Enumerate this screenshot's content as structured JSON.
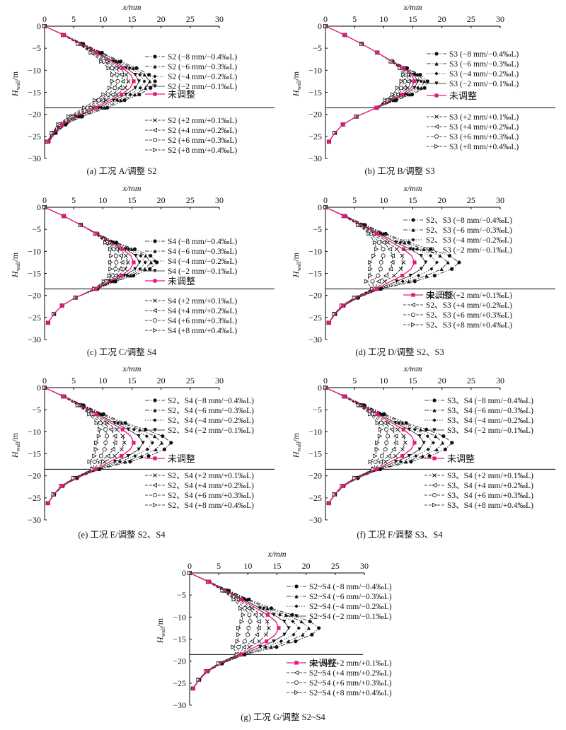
{
  "axes": {
    "xlabel": "x/mm",
    "ylabel": "H",
    "ylabel_sub": "wall",
    "ylabel_unit": "/m",
    "xticks": [
      0,
      5,
      10,
      15,
      20,
      25,
      30
    ],
    "yticks": [
      0,
      -5,
      -10,
      -15,
      -20,
      -25,
      -30
    ],
    "xlim": [
      0,
      30
    ],
    "ylim": [
      -30,
      0
    ],
    "hline_y": -18.5
  },
  "colors": {
    "unadjusted": "#e6197a",
    "series": "#111111"
  },
  "unadjusted_label": "未调整",
  "chart_data": [
    {
      "type": "line",
      "caption": "(a) 工况 A/调整 S2",
      "group": "S2",
      "max_shift": 0.4,
      "series": [
        {
          "name": "S2 (−8 mm/−0.4‰L)",
          "marker": "circle",
          "dash": "6,2,1.5,2",
          "delta": -8
        },
        {
          "name": "S2 (−6 mm/−0.3‰L)",
          "marker": "triangle",
          "dash": "6,2,1.5,2",
          "delta": -6
        },
        {
          "name": "S2 (−4 mm/−0.2‰L)",
          "marker": "diamond",
          "dash": "1.5,2",
          "delta": -4
        },
        {
          "name": "S2 (−2 mm/−0.1‰L)",
          "marker": "tri-down",
          "dash": "",
          "delta": -2
        },
        {
          "name": "S2 (+2 mm/+0.1‰L)",
          "marker": "x",
          "dash": "4,2",
          "delta": 2
        },
        {
          "name": "S2 (+4 mm/+0.2‰L)",
          "marker": "tri-left",
          "dash": "4,2",
          "delta": 4
        },
        {
          "name": "S2 (+6 mm/+0.3‰L)",
          "marker": "circle-open",
          "dash": "4,2",
          "delta": 6
        },
        {
          "name": "S2 (+8 mm/+0.4‰L)",
          "marker": "tri-right",
          "dash": "4,2",
          "delta": 8
        }
      ]
    },
    {
      "type": "line",
      "caption": "(b) 工况 B/调整 S3",
      "group": "S3",
      "max_shift": 0.28,
      "series": [
        {
          "name": "S3 (−8 mm/−0.4‰L)",
          "marker": "circle",
          "dash": "6,2,1.5,2",
          "delta": -8
        },
        {
          "name": "S3 (−6 mm/−0.3‰L)",
          "marker": "triangle",
          "dash": "6,2,1.5,2",
          "delta": -6
        },
        {
          "name": "S3 (−4 mm/−0.2‰L)",
          "marker": "diamond",
          "dash": "1.5,2",
          "delta": -4
        },
        {
          "name": "S3 (−2 mm/−0.1‰L)",
          "marker": "tri-down",
          "dash": "",
          "delta": -2
        },
        {
          "name": "S3 (+2 mm/+0.1‰L)",
          "marker": "x",
          "dash": "4,2",
          "delta": 2
        },
        {
          "name": "S3 (+4 mm/+0.2‰L)",
          "marker": "tri-left",
          "dash": "4,2",
          "delta": 4
        },
        {
          "name": "S3 (+6 mm/+0.3‰L)",
          "marker": "circle-open",
          "dash": "4,2",
          "delta": 6
        },
        {
          "name": "S3 (+8 mm/+0.4‰L)",
          "marker": "tri-right",
          "dash": "4,2",
          "delta": 8
        }
      ]
    },
    {
      "type": "line",
      "caption": "(c) 工况 C/调整 S4",
      "group": "S4",
      "max_shift": 0.26,
      "series": [
        {
          "name": "S4 (−8 mm/−0.4‰L)",
          "marker": "circle",
          "dash": "6,2,1.5,2",
          "delta": -8
        },
        {
          "name": "S4 (−6 mm/−0.3‰L)",
          "marker": "triangle",
          "dash": "6,2,1.5,2",
          "delta": -6
        },
        {
          "name": "S4 (−4 mm/−0.2‰L)",
          "marker": "diamond",
          "dash": "1.5,2",
          "delta": -4
        },
        {
          "name": "S4 (−2 mm/−0.1‰L)",
          "marker": "tri-down",
          "dash": "",
          "delta": -2
        },
        {
          "name": "S4 (+2 mm/+0.1‰L)",
          "marker": "x",
          "dash": "4,2",
          "delta": 2
        },
        {
          "name": "S4 (+4 mm/+0.2‰L)",
          "marker": "tri-left",
          "dash": "4,2",
          "delta": 4
        },
        {
          "name": "S4 (+6 mm/+0.3‰L)",
          "marker": "circle-open",
          "dash": "4,2",
          "delta": 6
        },
        {
          "name": "S4 (+8 mm/+0.4‰L)",
          "marker": "tri-right",
          "dash": "4,2",
          "delta": 8
        }
      ]
    },
    {
      "type": "line",
      "caption": "(d) 工况 D/调整 S2、S3",
      "group": "S2S3",
      "max_shift": 0.5,
      "series": [
        {
          "name": "S2、S3 (−8 mm/−0.4‰L)",
          "marker": "circle",
          "dash": "6,2,1.5,2",
          "delta": -8
        },
        {
          "name": "S2、S3 (−6 mm/−0.3‰L)",
          "marker": "triangle",
          "dash": "6,2,1.5,2",
          "delta": -6
        },
        {
          "name": "S2、S3 (−4 mm/−0.2‰L)",
          "marker": "diamond",
          "dash": "1.5,2",
          "delta": -4
        },
        {
          "name": "S2、S3 (−2 mm/−0.1‰L)",
          "marker": "tri-down",
          "dash": "",
          "delta": -2
        },
        {
          "name": "S2、S3 (+2 mm/+0.1‰L)",
          "marker": "x",
          "dash": "4,2",
          "delta": 2
        },
        {
          "name": "S2、S3 (+4 mm/+0.2‰L)",
          "marker": "tri-left",
          "dash": "4,2",
          "delta": 4
        },
        {
          "name": "S2、S3 (+6 mm/+0.3‰L)",
          "marker": "circle-open",
          "dash": "4,2",
          "delta": 6
        },
        {
          "name": "S2、S3 (+8 mm/+0.4‰L)",
          "marker": "tri-right",
          "dash": "4,2",
          "delta": 8
        }
      ]
    },
    {
      "type": "line",
      "caption": "(e) 工况 E/调整 S2、S4",
      "group": "S2S4",
      "max_shift": 0.42,
      "series": [
        {
          "name": "S2、S4 (−8 mm/−0.4‰L)",
          "marker": "circle",
          "dash": "6,2,1.5,2",
          "delta": -8
        },
        {
          "name": "S2、S4 (−6 mm/−0.3‰L)",
          "marker": "triangle",
          "dash": "6,2,1.5,2",
          "delta": -6
        },
        {
          "name": "S2、S4 (−4 mm/−0.2‰L)",
          "marker": "diamond",
          "dash": "1.5,2",
          "delta": -4
        },
        {
          "name": "S2、S4 (−2 mm/−0.1‰L)",
          "marker": "tri-down",
          "dash": "",
          "delta": -2
        },
        {
          "name": "S2、S4 (+2 mm/+0.1‰L)",
          "marker": "x",
          "dash": "4,2",
          "delta": 2
        },
        {
          "name": "S2、S4 (+4 mm/+0.2‰L)",
          "marker": "tri-left",
          "dash": "4,2",
          "delta": 4
        },
        {
          "name": "S2、S4 (+6 mm/+0.3‰L)",
          "marker": "circle-open",
          "dash": "4,2",
          "delta": 6
        },
        {
          "name": "S2、S4 (+8 mm/+0.4‰L)",
          "marker": "tri-right",
          "dash": "4,2",
          "delta": 8
        }
      ]
    },
    {
      "type": "line",
      "caption": "(f) 工况 F/调整 S3、S4",
      "group": "S3S4",
      "max_shift": 0.42,
      "series": [
        {
          "name": "S3、S4 (−8 mm/−0.4‰L)",
          "marker": "circle",
          "dash": "6,2,1.5,2",
          "delta": -8
        },
        {
          "name": "S3、S4 (−6 mm/−0.3‰L)",
          "marker": "triangle",
          "dash": "6,2,1.5,2",
          "delta": -6
        },
        {
          "name": "S3、S4 (−4 mm/−0.2‰L)",
          "marker": "diamond",
          "dash": "1.5,2",
          "delta": -4
        },
        {
          "name": "S3、S4 (−2 mm/−0.1‰L)",
          "marker": "tri-down",
          "dash": "",
          "delta": -2
        },
        {
          "name": "S3、S4 (+2 mm/+0.1‰L)",
          "marker": "x",
          "dash": "4,2",
          "delta": 2
        },
        {
          "name": "S3、S4 (+4 mm/+0.2‰L)",
          "marker": "tri-left",
          "dash": "4,2",
          "delta": 4
        },
        {
          "name": "S3、S4 (+6 mm/+0.3‰L)",
          "marker": "circle-open",
          "dash": "4,2",
          "delta": 6
        },
        {
          "name": "S3、S4 (+8 mm/+0.4‰L)",
          "marker": "tri-right",
          "dash": "4,2",
          "delta": 8
        }
      ]
    },
    {
      "type": "line",
      "caption": "(g) 工况 G/调整 S2~S4",
      "group": "S2toS4",
      "max_shift": 0.45,
      "series": [
        {
          "name": "S2~S4 (−8 mm/−0.4‰L)",
          "marker": "circle",
          "dash": "6,2,1.5,2",
          "delta": -8
        },
        {
          "name": "S2~S4 (−6 mm/−0.3‰L)",
          "marker": "triangle",
          "dash": "6,2,1.5,2",
          "delta": -6
        },
        {
          "name": "S2~S4 (−4 mm/−0.2‰L)",
          "marker": "diamond",
          "dash": "1.5,2",
          "delta": -4
        },
        {
          "name": "S2~S4 (−2 mm/−0.1‰L)",
          "marker": "tri-down",
          "dash": "",
          "delta": -2
        },
        {
          "name": "S2~S4 (+2 mm/+0.1‰L)",
          "marker": "x",
          "dash": "4,2",
          "delta": 2
        },
        {
          "name": "S2~S4 (+4 mm/+0.2‰L)",
          "marker": "tri-left",
          "dash": "4,2",
          "delta": 4
        },
        {
          "name": "S2~S4 (+6 mm/+0.3‰L)",
          "marker": "circle-open",
          "dash": "4,2",
          "delta": 6
        },
        {
          "name": "S2~S4 (+8 mm/+0.4‰L)",
          "marker": "tri-right",
          "dash": "4,2",
          "delta": 8
        }
      ]
    }
  ],
  "base_curve": {
    "y": [
      0,
      -2,
      -4,
      -6,
      -8,
      -9.5,
      -11,
      -12.5,
      -14,
      -15.5,
      -16.8,
      -18.5,
      -20.5,
      -22.3,
      -24.2,
      -26.2
    ],
    "x": [
      0,
      3.3,
      6.2,
      8.9,
      11.4,
      13.4,
      14.8,
      15.3,
      14.7,
      13.2,
      11.2,
      8.8,
      5.3,
      3.0,
      1.6,
      0.6
    ]
  }
}
